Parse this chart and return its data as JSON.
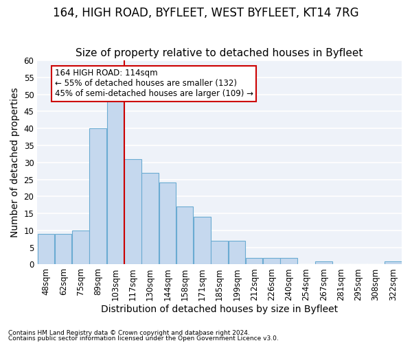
{
  "title1": "164, HIGH ROAD, BYFLEET, WEST BYFLEET, KT14 7RG",
  "title2": "Size of property relative to detached houses in Byfleet",
  "xlabel": "Distribution of detached houses by size in Byfleet",
  "ylabel": "Number of detached properties",
  "bins": [
    "48sqm",
    "62sqm",
    "75sqm",
    "89sqm",
    "103sqm",
    "117sqm",
    "130sqm",
    "144sqm",
    "158sqm",
    "171sqm",
    "185sqm",
    "199sqm",
    "212sqm",
    "226sqm",
    "240sqm",
    "254sqm",
    "267sqm",
    "281sqm",
    "295sqm",
    "308sqm",
    "322sqm"
  ],
  "values": [
    9,
    9,
    10,
    40,
    49,
    31,
    27,
    24,
    17,
    14,
    7,
    7,
    2,
    2,
    2,
    0,
    1,
    0,
    0,
    0,
    1
  ],
  "bar_color": "#c5d8ee",
  "bar_edge_color": "#6aabd2",
  "vline_x_index": 5,
  "vline_color": "#cc0000",
  "annotation_text": "164 HIGH ROAD: 114sqm\n← 55% of detached houses are smaller (132)\n45% of semi-detached houses are larger (109) →",
  "annotation_box_color": "#ffffff",
  "annotation_box_edge": "#cc0000",
  "ylim": [
    0,
    60
  ],
  "yticks": [
    0,
    5,
    10,
    15,
    20,
    25,
    30,
    35,
    40,
    45,
    50,
    55,
    60
  ],
  "footnote1": "Contains HM Land Registry data © Crown copyright and database right 2024.",
  "footnote2": "Contains public sector information licensed under the Open Government Licence v3.0.",
  "bg_color": "#eef2f9",
  "title1_fontsize": 12,
  "title2_fontsize": 11,
  "axis_label_fontsize": 10,
  "tick_fontsize": 8.5,
  "annotation_fontsize": 8.5
}
